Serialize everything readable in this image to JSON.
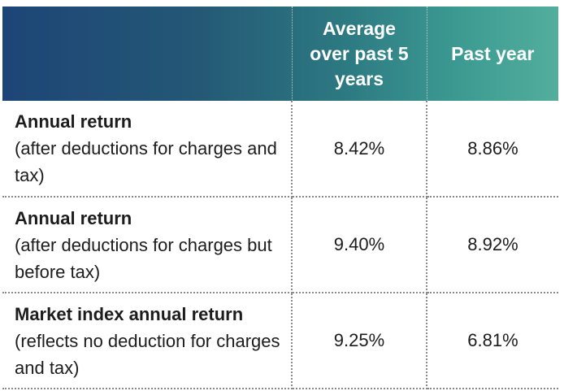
{
  "table": {
    "headers": {
      "col1": "",
      "col2": "Average over past 5 years",
      "col3": "Past year"
    },
    "rows": [
      {
        "title": "Annual return",
        "subtitle": "(after deductions for charges and tax)",
        "avg_5y": "8.42%",
        "past_year": "8.86%"
      },
      {
        "title": "Annual return",
        "subtitle": "(after deductions for charges but before tax)",
        "avg_5y": "9.40%",
        "past_year": "8.92%"
      },
      {
        "title": "Market index annual return",
        "subtitle": "(reflects no deduction for charges and tax)",
        "avg_5y": "9.25%",
        "past_year": "6.81%"
      }
    ]
  },
  "colors": {
    "header_gradient_start": "#1d4576",
    "header_gradient_end": "#52ae9c",
    "text": "#1c1c1c",
    "divider": "#8a8a8a"
  }
}
